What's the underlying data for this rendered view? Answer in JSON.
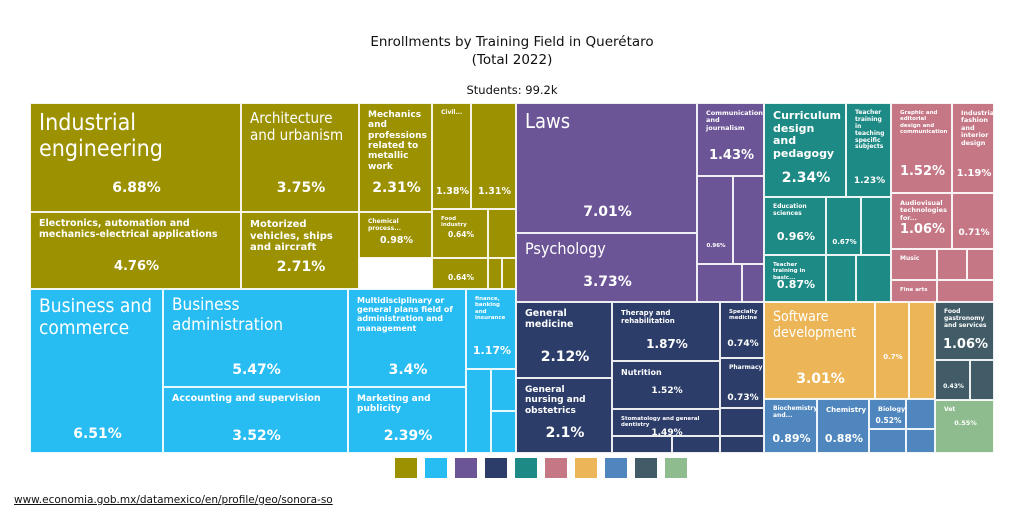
{
  "title_line1": "Enrollments by Training Field in Querétaro",
  "title_line2": "(Total 2022)",
  "subtitle": "Students: 99.2k",
  "source": "www.economia.gob.mx/datamexico/en/profile/geo/sonora-so",
  "colors": {
    "engineering": "#9c9100",
    "business": "#27bcf2",
    "social": "#6b5597",
    "health": "#2c3d6a",
    "education": "#1e8a85",
    "arts": "#c57786",
    "sciences": "#ecb557",
    "naturalsci": "#4f86bd",
    "services": "#425c67",
    "agro": "#8fbc8f"
  },
  "legend": [
    "#9c9100",
    "#27bcf2",
    "#6b5597",
    "#2c3d6a",
    "#1e8a85",
    "#c57786",
    "#ecb557",
    "#4f86bd",
    "#425c67",
    "#8fbc8f"
  ],
  "chart_data": {
    "type": "treemap",
    "title": "Enrollments by Training Field in Querétaro (Total 2022)",
    "total": "Students: 99.2k",
    "unit": "% of students",
    "cells": [
      {
        "group": "engineering",
        "label": "Industrial engineering",
        "value": 6.88
      },
      {
        "group": "engineering",
        "label": "Electronics, automation and mechanics-electrical applications",
        "value": 4.76
      },
      {
        "group": "engineering",
        "label": "Architecture and urbanism",
        "value": 3.75
      },
      {
        "group": "engineering",
        "label": "Motorized vehicles, ships and aircraft",
        "value": 2.71
      },
      {
        "group": "engineering",
        "label": "Mechanics and professions related to metallic work",
        "value": 2.31
      },
      {
        "group": "engineering",
        "label": "Civil...",
        "value": 1.38
      },
      {
        "group": "engineering",
        "label": "",
        "value": 1.31
      },
      {
        "group": "engineering",
        "label": "Chemical process...",
        "value": 0.98
      },
      {
        "group": "engineering",
        "label": "Food industry",
        "value": 0.64
      },
      {
        "group": "engineering",
        "label": "",
        "value": 0.64
      },
      {
        "group": "business",
        "label": "Business and commerce",
        "value": 6.51
      },
      {
        "group": "business",
        "label": "Business administration",
        "value": 5.47
      },
      {
        "group": "business",
        "label": "Accounting and supervision",
        "value": 3.52
      },
      {
        "group": "business",
        "label": "Multidisciplinary or general plans field of administration and management",
        "value": 3.4
      },
      {
        "group": "business",
        "label": "Marketing and publicity",
        "value": 2.39
      },
      {
        "group": "business",
        "label": "finance, banking and insurance",
        "value": 1.17
      },
      {
        "group": "social",
        "label": "Laws",
        "value": 7.01
      },
      {
        "group": "social",
        "label": "Psychology",
        "value": 3.73
      },
      {
        "group": "social",
        "label": "Communication and journalism",
        "value": 1.43
      },
      {
        "group": "social",
        "label": "",
        "value": 0.96
      },
      {
        "group": "health",
        "label": "General medicine",
        "value": 2.12
      },
      {
        "group": "health",
        "label": "General nursing and obstetrics",
        "value": 2.1
      },
      {
        "group": "health",
        "label": "Therapy and rehabilitation",
        "value": 1.87
      },
      {
        "group": "health",
        "label": "Nutrition",
        "value": 1.52
      },
      {
        "group": "health",
        "label": "Stomatology and general dentistry",
        "value": 1.49
      },
      {
        "group": "health",
        "label": "Specialty medicine",
        "value": 0.74
      },
      {
        "group": "health",
        "label": "Pharmacy",
        "value": 0.73
      },
      {
        "group": "education",
        "label": "Curriculum design and pedagogy",
        "value": 2.34
      },
      {
        "group": "education",
        "label": "Teacher training in teaching specific subjects",
        "value": 1.23
      },
      {
        "group": "education",
        "label": "Education sciences",
        "value": 0.96
      },
      {
        "group": "education",
        "label": "",
        "value": 0.67
      },
      {
        "group": "education",
        "label": "Teacher training in basic...",
        "value": 0.87
      },
      {
        "group": "arts",
        "label": "Graphic and editorial design and communication",
        "value": 1.52
      },
      {
        "group": "arts",
        "label": "Industrial, fashion and interior design",
        "value": 1.19
      },
      {
        "group": "arts",
        "label": "Audiovisual technologies for...",
        "value": 1.06
      },
      {
        "group": "arts",
        "label": "",
        "value": 0.71
      },
      {
        "group": "arts",
        "label": "Music",
        "value": null
      },
      {
        "group": "arts",
        "label": "Fine arts",
        "value": null
      },
      {
        "group": "sciences",
        "label": "Software development",
        "value": 3.01
      },
      {
        "group": "sciences",
        "label": "",
        "value": 0.7
      },
      {
        "group": "naturalsci",
        "label": "Biochemistry and...",
        "value": 0.89
      },
      {
        "group": "naturalsci",
        "label": "Chemistry",
        "value": 0.88
      },
      {
        "group": "naturalsci",
        "label": "Biology",
        "value": 0.52
      },
      {
        "group": "services",
        "label": "Food gastronomy and services",
        "value": 1.06
      },
      {
        "group": "services",
        "label": "",
        "value": 0.43
      },
      {
        "group": "agro",
        "label": "Vet",
        "value": 0.55
      }
    ]
  },
  "pct_labels": {
    "engineering": [
      "6.88%",
      "4.76%",
      "3.75%",
      "2.71%",
      "2.31%",
      "1.38%",
      "1.31%",
      "0.98%",
      "0.64%",
      "0.64%"
    ],
    "business": [
      "6.51%",
      "5.47%",
      "3.52%",
      "3.4%",
      "2.39%",
      "1.17%"
    ],
    "social": [
      "7.01%",
      "3.73%",
      "1.43%",
      "0.96%"
    ],
    "health": [
      "2.12%",
      "2.1%",
      "1.87%",
      "1.52%",
      "1.49%",
      "0.74%",
      "0.73%"
    ],
    "education": [
      "2.34%",
      "1.23%",
      "0.96%",
      "0.67%",
      "0.87%"
    ],
    "arts": [
      "1.52%",
      "1.19%",
      "1.06%",
      "0.71%"
    ],
    "sciences": [
      "3.01%",
      "0.7%",
      "0.89%",
      "0.88%",
      "0.52%"
    ],
    "services": [
      "1.06%",
      "0.43%",
      "0.55%"
    ]
  }
}
